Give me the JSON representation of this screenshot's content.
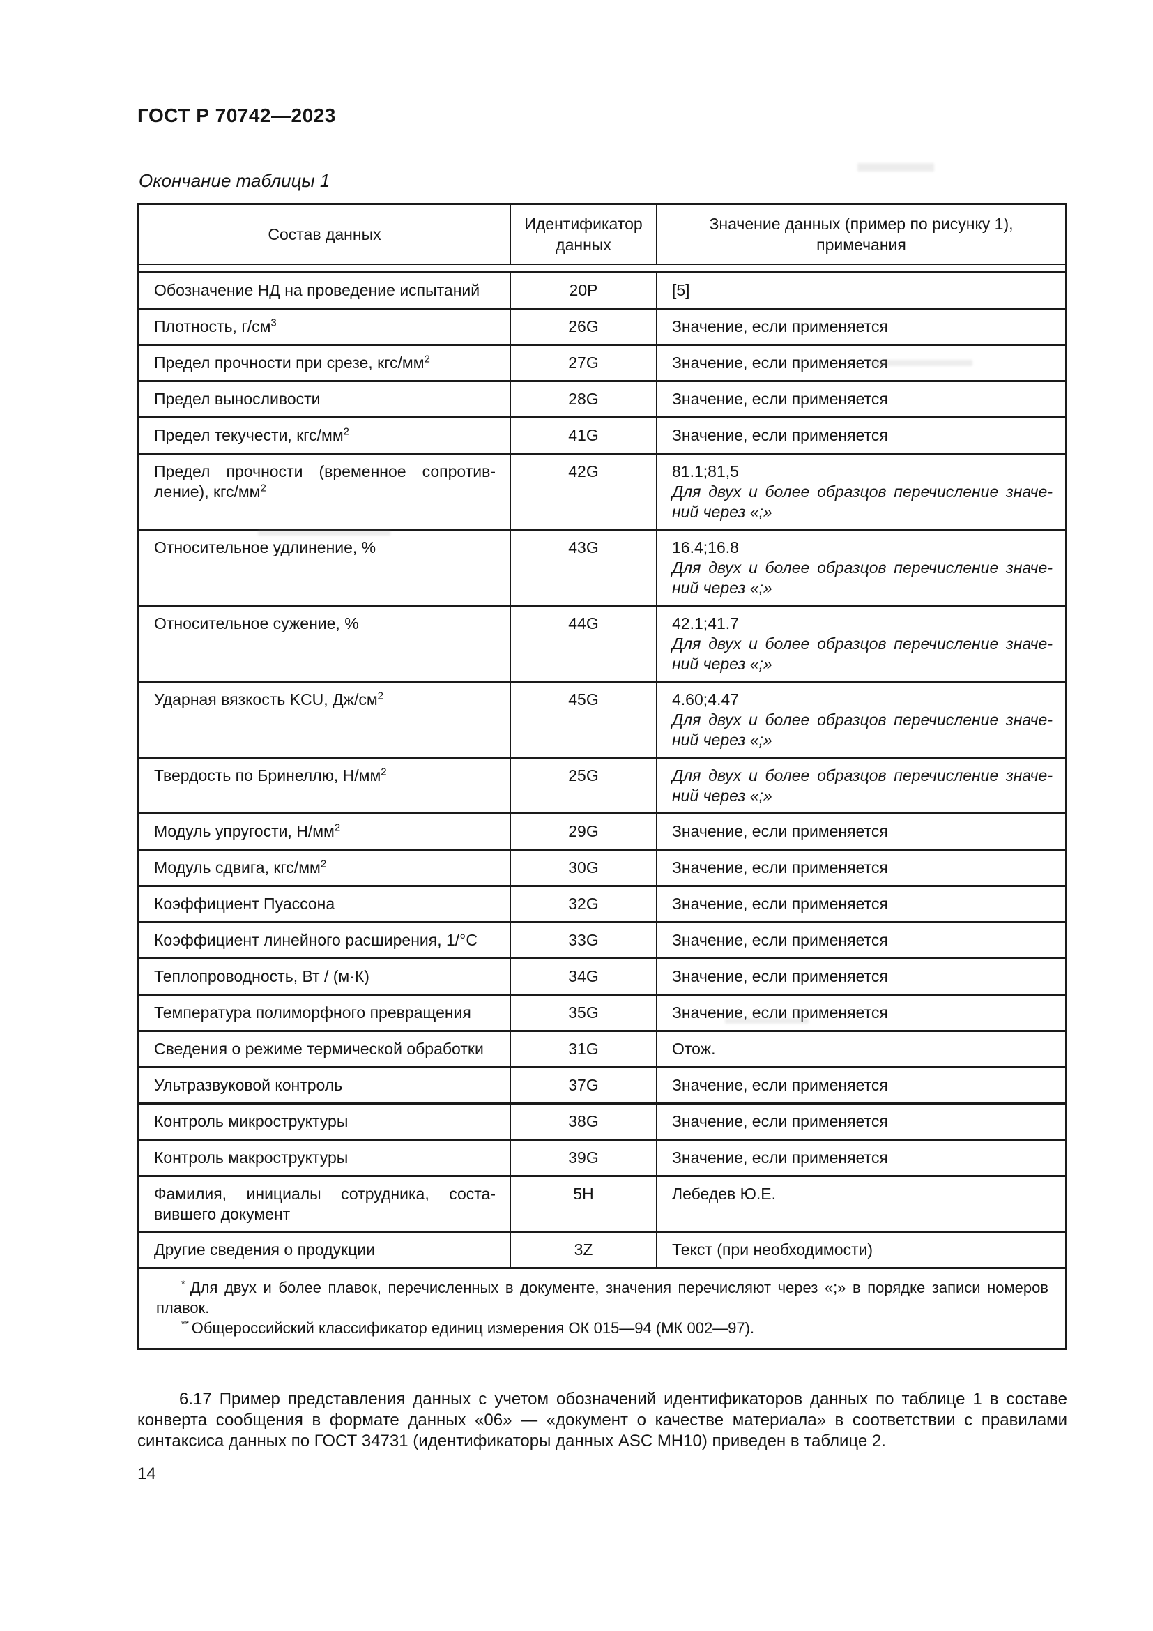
{
  "doc": {
    "code": "ГОСТ Р 70742—2023",
    "table_caption": "Окончание таблицы 1",
    "page_number": "14",
    "paragraph_6_17": "6.17 Пример представления данных с учетом обозначений идентификаторов данных по таблице 1 в составе конверта сообщения в формате данных «06» — «документ о качестве материала» в соответ­ствии с правилами синтаксиса данных по ГОСТ 34731 (идентификаторы данных ASC MH10) приведен в таблице 2."
  },
  "table": {
    "headers": [
      "Состав данных",
      "Идентификатор данных",
      "Значение данных (пример по рисунку 1), примечания"
    ],
    "rows": [
      {
        "name": "Обозначение НД на проведение испытаний",
        "sup": "",
        "id": "20P",
        "value": "[5]",
        "note": ""
      },
      {
        "name": "Плотность, г/см",
        "sup": "3",
        "id": "26G",
        "value": "Значение, если применяется",
        "note": ""
      },
      {
        "name": "Предел прочности при срезе, кгс/мм",
        "sup": "2",
        "id": "27G",
        "value": "Значение, если применяется",
        "note": ""
      },
      {
        "name": "Предел выносливости",
        "sup": "",
        "id": "28G",
        "value": "Значение, если применяется",
        "note": ""
      },
      {
        "name": "Предел текучести, кгс/мм",
        "sup": "2",
        "id": "41G",
        "value": "Значение, если применяется",
        "note": ""
      },
      {
        "name": "Предел прочности (временное сопротив­ление), кгс/мм",
        "sup": "2",
        "id": "42G",
        "value": "81.1;81,5",
        "note": "Для двух и более образцов перечисление значе­ний через «;»"
      },
      {
        "name": "Относительное удлинение, %",
        "sup": "",
        "id": "43G",
        "value": "16.4;16.8",
        "note": "Для двух и более образцов перечисление значе­ний через «;»"
      },
      {
        "name": "Относительное сужение, %",
        "sup": "",
        "id": "44G",
        "value": "42.1;41.7",
        "note": "Для двух и более образцов перечисление значе­ний через «;»"
      },
      {
        "name": "Ударная вязкость KCU, Дж/см",
        "sup": "2",
        "id": "45G",
        "value": "4.60;4.47",
        "note": "Для двух и более образцов перечисление значе­ний через «;»"
      },
      {
        "name": "Твердость по Бринеллю, Н/мм",
        "sup": "2",
        "id": "25G",
        "value": "",
        "note": "Для двух и более образцов перечисление значе­ний через «;»"
      },
      {
        "name": "Модуль упругости, Н/мм",
        "sup": "2",
        "id": "29G",
        "value": "Значение, если применяется",
        "note": ""
      },
      {
        "name": "Модуль сдвига, кгс/мм",
        "sup": "2",
        "id": "30G",
        "value": "Значение, если применяется",
        "note": ""
      },
      {
        "name": "Коэффициент Пуассона",
        "sup": "",
        "id": "32G",
        "value": "Значение, если применяется",
        "note": ""
      },
      {
        "name": "Коэффициент линейного расширения, 1/°С",
        "sup": "",
        "id": "33G",
        "value": "Значение, если применяется",
        "note": ""
      },
      {
        "name": "Теплопроводность, Вт / (м·К)",
        "sup": "",
        "id": "34G",
        "value": "Значение, если применяется",
        "note": ""
      },
      {
        "name": "Температура полиморфного превращения",
        "sup": "",
        "id": "35G",
        "value": "Значение, если применяется",
        "note": ""
      },
      {
        "name": "Сведения о режиме термической обработки",
        "sup": "",
        "id": "31G",
        "value": "Отож.",
        "note": ""
      },
      {
        "name": "Ультразвуковой контроль",
        "sup": "",
        "id": "37G",
        "value": "Значение, если применяется",
        "note": ""
      },
      {
        "name": "Контроль микроструктуры",
        "sup": "",
        "id": "38G",
        "value": "Значение, если применяется",
        "note": ""
      },
      {
        "name": "Контроль макроструктуры",
        "sup": "",
        "id": "39G",
        "value": "Значение, если применяется",
        "note": ""
      },
      {
        "name": "Фамилия, инициалы сотрудника, соста­вившего документ",
        "sup": "",
        "id": "5H",
        "value": "Лебедев Ю.Е.",
        "note": ""
      },
      {
        "name": "Другие сведения о продукции",
        "sup": "",
        "id": "3Z",
        "value": "Текст (при необходимости)",
        "note": ""
      }
    ],
    "footnotes": [
      {
        "marker": "*",
        "text": "Для двух и более плавок, перечисленных в документе, значения перечисляют через «;» в порядке записи номеров плавок."
      },
      {
        "marker": "**",
        "text": "Общероссийский классификатор единиц измерения ОК 015—94 (МК 002—97)."
      }
    ]
  }
}
